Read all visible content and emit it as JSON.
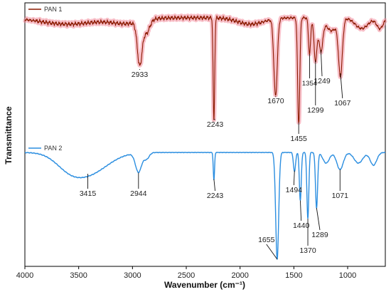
{
  "chart_data": {
    "type": "line",
    "xlabel": "Wavenumber (cm⁻¹)",
    "ylabel": "Transmittance",
    "xlim": [
      4000,
      650
    ],
    "x_reversed": true,
    "xticks": [
      "4000",
      "3500",
      "3000",
      "2500",
      "2000",
      "1500",
      "1000"
    ],
    "grid": false,
    "legend_position": "top-left",
    "series": [
      {
        "name": "PAN 1",
        "color": "#8B1A00",
        "band_color": "#F28B9B",
        "peaks": [
          {
            "x": 2933,
            "label": "2933",
            "y": 0.5
          },
          {
            "x": 2243,
            "label": "2243",
            "y": 0.03
          },
          {
            "x": 1670,
            "label": "1670",
            "y": 0.24
          },
          {
            "x": 1455,
            "label": "1455",
            "y": 0.0
          },
          {
            "x": 1354,
            "label": "1354",
            "y": 0.64
          },
          {
            "x": 1299,
            "label": "1299",
            "y": 0.58
          },
          {
            "x": 1249,
            "label": "1249",
            "y": 0.68
          },
          {
            "x": 1067,
            "label": "1067",
            "y": 0.46
          }
        ]
      },
      {
        "name": "PAN 2",
        "color": "#2B8EE0",
        "peaks": [
          {
            "x": 3415,
            "label": "3415",
            "y": 0.8
          },
          {
            "x": 2944,
            "label": "2944",
            "y": 0.81
          },
          {
            "x": 2243,
            "label": "2243",
            "y": 0.75
          },
          {
            "x": 1655,
            "label": "1655",
            "y": 0.0
          },
          {
            "x": 1494,
            "label": "1494",
            "y": 0.83
          },
          {
            "x": 1440,
            "label": "1440",
            "y": 0.55
          },
          {
            "x": 1370,
            "label": "1370",
            "y": 0.38
          },
          {
            "x": 1289,
            "label": "1289",
            "y": 0.48
          },
          {
            "x": 1071,
            "label": "1071",
            "y": 0.84
          }
        ]
      }
    ]
  }
}
